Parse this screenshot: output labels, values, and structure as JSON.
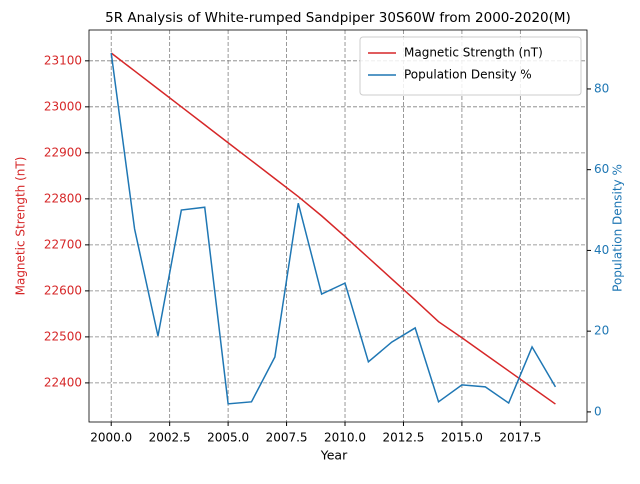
{
  "chart_data": {
    "type": "line",
    "title": "5R Analysis of White-rumped Sandpiper 30S60W from 2000-2020(M)",
    "x_label": "Year",
    "y_label": "Magnetic Strength (nT)",
    "y2_label": "Population Density %",
    "x": [
      2000,
      2001,
      2002,
      2003,
      2004,
      2005,
      2006,
      2007,
      2008,
      2009,
      2010,
      2011,
      2012,
      2013,
      2014,
      2015,
      2016,
      2017,
      2018,
      2019
    ],
    "series": [
      {
        "name": "Magnetic Strength (nT)",
        "color": "#d62728",
        "axis": "y",
        "values": [
          23117,
          23078,
          23039,
          23000,
          22961,
          22922,
          22883,
          22844,
          22805,
          22763,
          22718,
          22672,
          22626,
          22580,
          22533,
          22498,
          22462,
          22426,
          22390,
          22354
        ]
      },
      {
        "name": "Population Density %",
        "color": "#1f77b4",
        "axis": "y2",
        "values": [
          88.9,
          45.3,
          18.8,
          50,
          50.7,
          2,
          2.5,
          13.6,
          51.7,
          29.2,
          31.9,
          12.4,
          17.3,
          20.8,
          2.5,
          6.7,
          6.2,
          2.2,
          16.1,
          6.2
        ]
      }
    ],
    "xlim": [
      1999.05,
      2020.35
    ],
    "xticks": [
      {
        "value": 2000,
        "label": "2000.0"
      },
      {
        "value": 2002.5,
        "label": "2002.5"
      },
      {
        "value": 2005,
        "label": "2005.0"
      },
      {
        "value": 2007.5,
        "label": "2007.5"
      },
      {
        "value": 2010,
        "label": "2010.0"
      },
      {
        "value": 2012.5,
        "label": "2012.5"
      },
      {
        "value": 2015,
        "label": "2015.0"
      },
      {
        "value": 2017.5,
        "label": "2017.5"
      }
    ],
    "ylim": [
      22315,
      23167
    ],
    "yticks": [
      22400,
      22500,
      22600,
      22700,
      22800,
      22900,
      23000,
      23100
    ],
    "y2lim": [
      -2.5,
      94.6
    ],
    "y2ticks": [
      0,
      20,
      40,
      60,
      80
    ],
    "grid": true,
    "legend": "upper right"
  }
}
